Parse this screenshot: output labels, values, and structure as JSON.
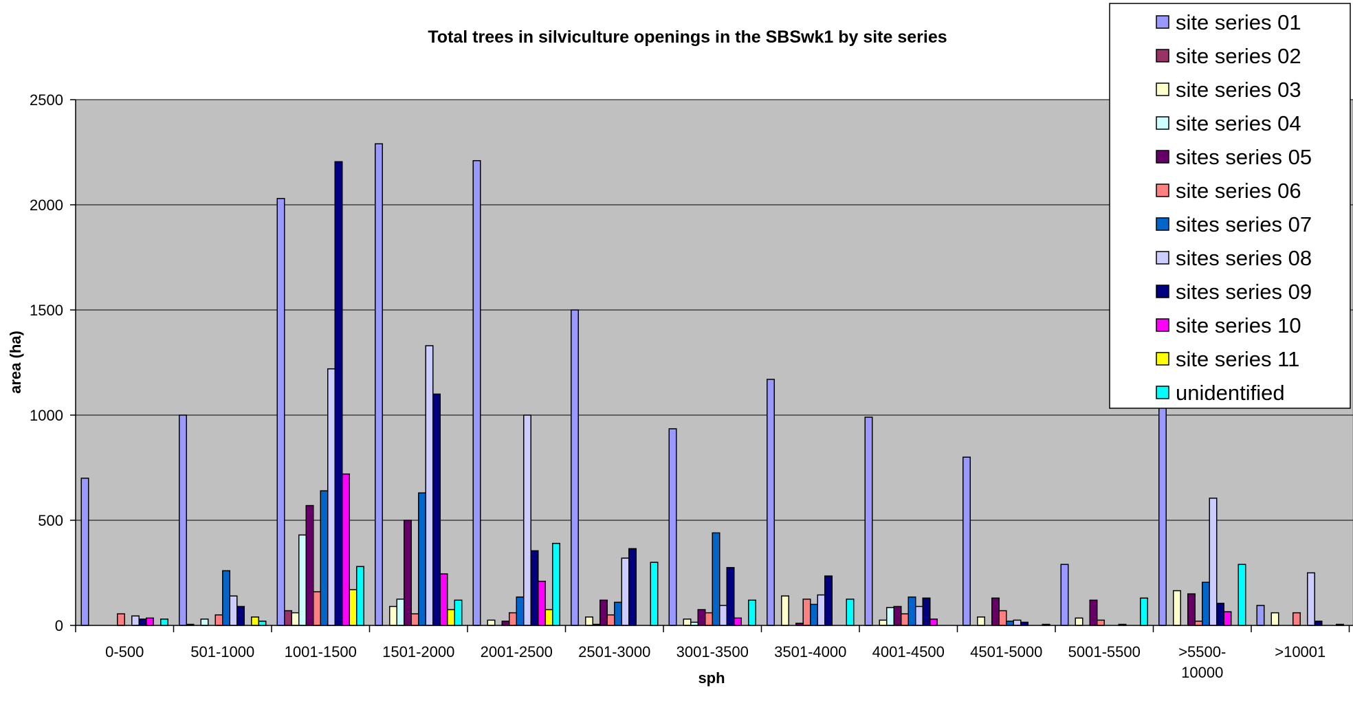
{
  "chart_data": {
    "type": "bar",
    "title": "Total trees in silviculture openings in the SBSwk1 by site series",
    "xlabel": "sph",
    "ylabel": "area (ha)",
    "ylim": [
      0,
      2500
    ],
    "yticks": [
      0,
      500,
      1000,
      1500,
      2000,
      2500
    ],
    "grid": true,
    "plot_background": "#C0C0C0",
    "legend_position": "top-right",
    "categories": [
      [
        "0-500"
      ],
      [
        "501-1000"
      ],
      [
        "1001-1500"
      ],
      [
        "1501-2000"
      ],
      [
        "2001-2500"
      ],
      [
        "2501-3000"
      ],
      [
        "3001-3500"
      ],
      [
        "3501-4000"
      ],
      [
        "4001-4500"
      ],
      [
        "4501-5000"
      ],
      [
        "5001-5500"
      ],
      [
        ">5500-",
        "10000"
      ],
      [
        ">10001"
      ]
    ],
    "series": [
      {
        "name": "site series 01",
        "color": "#9999FF",
        "values": [
          700,
          1000,
          2030,
          2290,
          2210,
          1500,
          935,
          1170,
          990,
          800,
          290,
          1120,
          95
        ]
      },
      {
        "name": "site series 02",
        "color": "#993366",
        "values": [
          0,
          5,
          70,
          0,
          0,
          0,
          0,
          0,
          0,
          0,
          0,
          0,
          0
        ]
      },
      {
        "name": "site series 03",
        "color": "#FFFFCC",
        "values": [
          0,
          0,
          60,
          90,
          25,
          40,
          30,
          140,
          25,
          40,
          35,
          165,
          60
        ]
      },
      {
        "name": "site series 04",
        "color": "#CCFFFF",
        "values": [
          0,
          30,
          430,
          125,
          0,
          5,
          15,
          0,
          85,
          0,
          0,
          0,
          0
        ]
      },
      {
        "name": "sites series 05",
        "color": "#660066",
        "values": [
          0,
          0,
          570,
          500,
          20,
          120,
          75,
          10,
          90,
          130,
          120,
          150,
          0
        ]
      },
      {
        "name": "site series 06",
        "color": "#FF8080",
        "values": [
          55,
          50,
          160,
          55,
          60,
          50,
          60,
          125,
          55,
          70,
          25,
          20,
          60
        ]
      },
      {
        "name": "sites series 07",
        "color": "#0066CC",
        "values": [
          0,
          260,
          640,
          630,
          135,
          110,
          440,
          100,
          135,
          20,
          0,
          205,
          0
        ]
      },
      {
        "name": "sites series 08",
        "color": "#CCCCFF",
        "values": [
          45,
          140,
          1220,
          1330,
          1000,
          320,
          95,
          145,
          90,
          25,
          0,
          605,
          250
        ]
      },
      {
        "name": "sites series 09",
        "color": "#000080",
        "values": [
          30,
          90,
          2205,
          1100,
          355,
          365,
          275,
          235,
          130,
          15,
          5,
          105,
          20
        ]
      },
      {
        "name": "site series 10",
        "color": "#FF00FF",
        "values": [
          35,
          0,
          720,
          245,
          210,
          0,
          35,
          0,
          30,
          0,
          0,
          65,
          0
        ]
      },
      {
        "name": "site series 11",
        "color": "#FFFF00",
        "values": [
          0,
          40,
          170,
          75,
          75,
          0,
          0,
          0,
          0,
          0,
          0,
          0,
          0
        ]
      },
      {
        "name": "unidentified",
        "color": "#00FFFF",
        "values": [
          30,
          20,
          280,
          120,
          390,
          300,
          120,
          125,
          0,
          5,
          130,
          290,
          5
        ]
      }
    ]
  }
}
